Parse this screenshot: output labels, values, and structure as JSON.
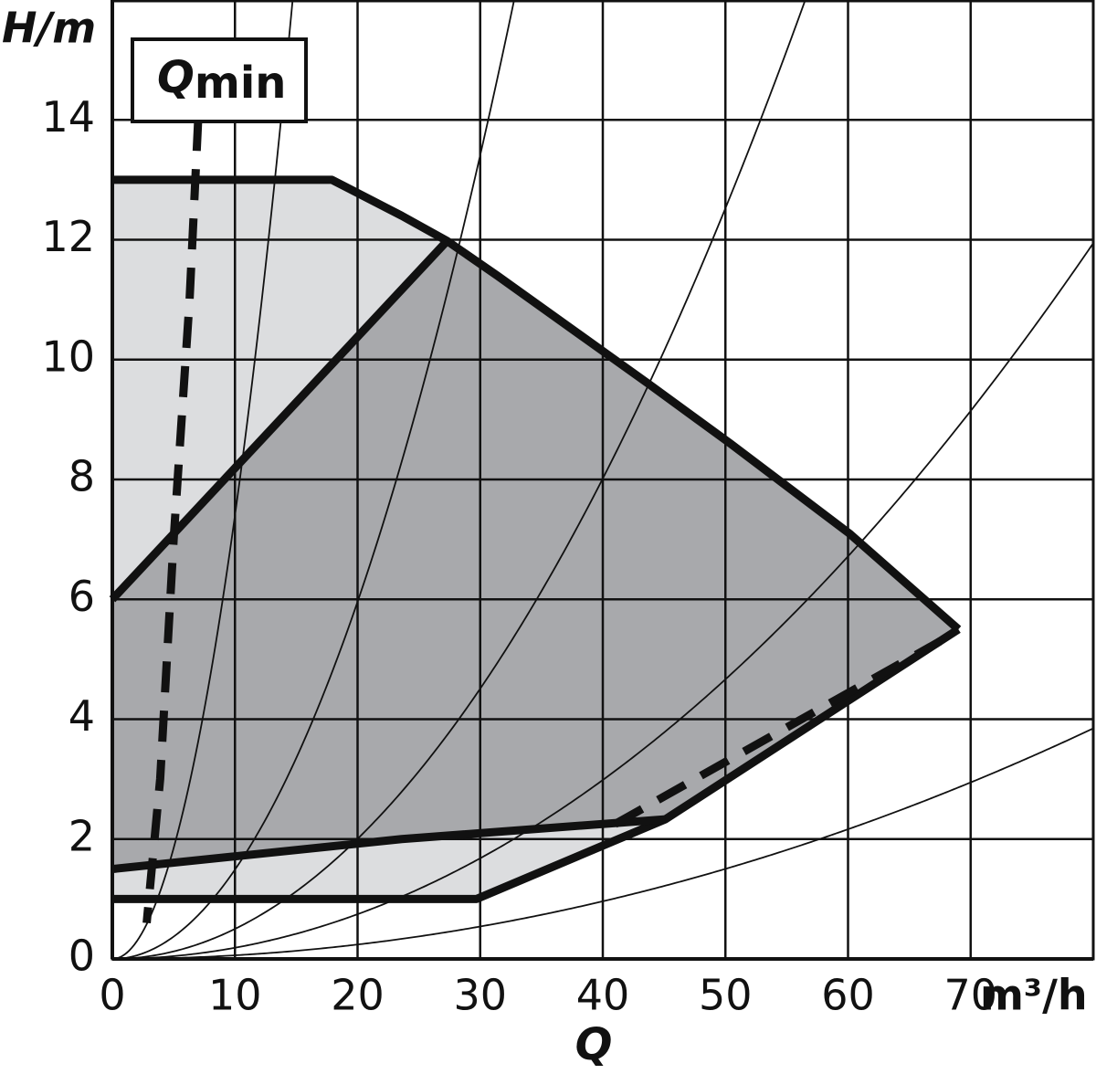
{
  "chart_data": {
    "type": "area",
    "y_label": "H/m",
    "x_label": "Q",
    "x_unit": "m³/h",
    "annotation": {
      "text": "Q",
      "subscript": "min"
    },
    "xlim": [
      0,
      80
    ],
    "ylim": [
      0,
      16
    ],
    "xticks": [
      0,
      10,
      20,
      30,
      40,
      50,
      60,
      70
    ],
    "yticks": [
      0,
      2,
      4,
      6,
      8,
      10,
      12,
      14
    ],
    "grid": true,
    "areas": [
      {
        "color": "#dcdddf",
        "x": [
          0,
          17.9,
          23.6,
          27.3,
          31.4,
          43.7,
          50.4,
          60.1,
          69.0,
          45.1,
          29.7,
          0
        ],
        "y": [
          13,
          13,
          12.4,
          11.98,
          11.4,
          9.6,
          8.6,
          7.1,
          5.5,
          2.33,
          1,
          1
        ]
      },
      {
        "color": "#a8a9ac",
        "x": [
          0,
          27.3,
          31.4,
          43.7,
          50.4,
          60.1,
          69.0,
          45.1,
          23.6,
          0
        ],
        "y": [
          6,
          11.98,
          11.4,
          9.6,
          8.6,
          7.1,
          5.5,
          2.33,
          2.0,
          1.5
        ]
      }
    ],
    "lines": [
      {
        "color": "#111111",
        "dashed": false,
        "x": [
          0,
          17.9,
          23.6,
          27.3,
          31.4,
          43.7,
          50.4,
          60.1,
          69.0
        ],
        "y": [
          13,
          13,
          12.4,
          11.98,
          11.4,
          9.6,
          8.6,
          7.1,
          5.5
        ]
      },
      {
        "color": "#111111",
        "dashed": false,
        "x": [
          0,
          29.7,
          45.1,
          69.0
        ],
        "y": [
          1,
          1,
          2.33,
          5.5
        ]
      },
      {
        "color": "#111111",
        "dashed": false,
        "x": [
          0,
          27.3
        ],
        "y": [
          6,
          11.98
        ]
      },
      {
        "color": "#111111",
        "dashed": false,
        "x": [
          0,
          23.6,
          45.1
        ],
        "y": [
          1.5,
          2.0,
          2.33
        ]
      },
      {
        "color": "#111111",
        "dashed": true,
        "x": [
          41,
          67.5
        ],
        "y": [
          2.25,
          5.3
        ]
      },
      {
        "color": "#111111",
        "dashed": true,
        "x": [
          7,
          6.3,
          5.0,
          3.9,
          2.8
        ],
        "y": [
          14,
          11,
          7,
          3,
          0.6
        ]
      }
    ],
    "system_curves": [
      0.074,
      0.0149,
      0.00501,
      0.001866,
      0.000601
    ]
  }
}
